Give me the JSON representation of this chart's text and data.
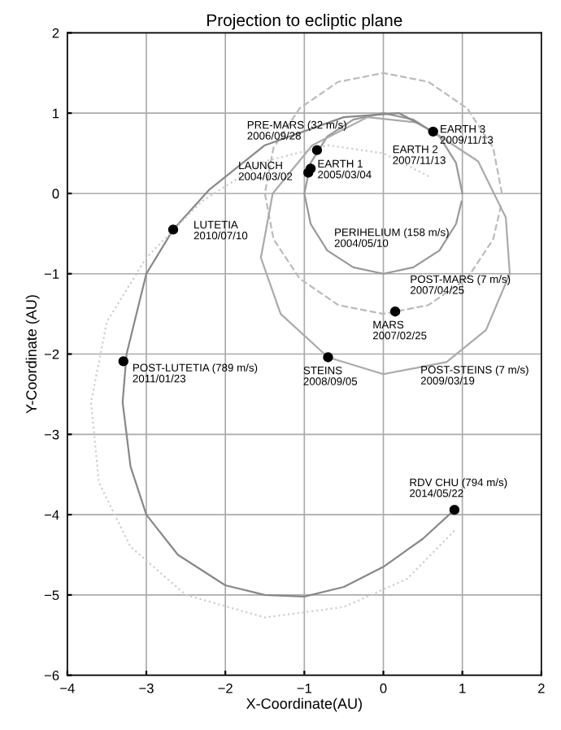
{
  "chart_data": {
    "type": "line",
    "title": "Projection to ecliptic plane",
    "xlabel": "X-Coordinate(AU)",
    "ylabel": "Y-Coordinate (AU)",
    "xlim": [
      -4,
      2
    ],
    "ylim": [
      -6,
      2
    ],
    "xticks": [
      -4,
      -3,
      -2,
      -1,
      0,
      1,
      2
    ],
    "yticks": [
      -6,
      -5,
      -4,
      -3,
      -2,
      -1,
      0,
      1,
      2
    ],
    "grid": true,
    "legend": false,
    "series": [
      {
        "type": "line",
        "line_style": "solid",
        "color": "#999999",
        "x": [
          1,
          0.92,
          0.71,
          0.38,
          0,
          -0.38,
          -0.71,
          -0.92,
          -1,
          -0.92,
          -0.71,
          -0.38,
          0,
          0.38,
          0.71,
          0.92,
          0.99
        ],
        "values": [
          0,
          0.38,
          0.71,
          0.92,
          1,
          0.92,
          0.71,
          0.38,
          0,
          -0.38,
          -0.71,
          -0.92,
          -1,
          -0.92,
          -0.71,
          -0.38,
          -0.1
        ]
      },
      {
        "type": "line",
        "line_style": "dashed",
        "color": "#bbbbbb",
        "x": [
          1.5,
          1.39,
          1.06,
          0.57,
          0,
          -0.57,
          -1.06,
          -1.39,
          -1.5,
          -1.39,
          -1.06,
          -0.57,
          0,
          0.57,
          1.06,
          1.39,
          1.49
        ],
        "values": [
          0,
          0.57,
          1.06,
          1.39,
          1.5,
          1.39,
          1.06,
          0.57,
          0,
          -0.57,
          -1.06,
          -1.39,
          -1.5,
          -1.39,
          -1.06,
          -0.57,
          -0.15
        ]
      },
      {
        "type": "line",
        "line_style": "solid",
        "color": "#aaaaaa",
        "x": [
          0.63,
          1.2,
          1.55,
          1.6,
          1.3,
          0.8,
          0,
          -0.7,
          -1.3,
          -1.55,
          -1.4,
          -0.9,
          -0.2,
          0.45
        ],
        "values": [
          0.77,
          0.4,
          -0.3,
          -1.0,
          -1.7,
          -2.1,
          -2.25,
          -2.04,
          -1.5,
          -0.8,
          0,
          0.6,
          0.95,
          0.88
        ]
      },
      {
        "type": "line",
        "line_style": "solid",
        "color": "#888888",
        "x": [
          0.63,
          0.2,
          -0.5,
          -1.5,
          -2.2,
          -2.66,
          -3.0,
          -3.25,
          -3.3,
          -3.2,
          -3.0,
          -2.6,
          -2.0,
          -1.5,
          -1.0,
          -0.5,
          0,
          0.5,
          0.9
        ],
        "values": [
          0.77,
          1.0,
          0.95,
          0.6,
          0.05,
          -0.45,
          -1.0,
          -2.0,
          -2.6,
          -3.4,
          -4.0,
          -4.5,
          -4.88,
          -5.0,
          -5.02,
          -4.9,
          -4.65,
          -4.3,
          -3.94
        ]
      },
      {
        "type": "line",
        "line_style": "dotted",
        "color": "#cccccc",
        "x": [
          0.9,
          0.3,
          -0.5,
          -1.5,
          -2.5,
          -3.2,
          -3.6,
          -3.7,
          -3.5,
          -3.0,
          -2.3,
          -1.5,
          -0.7,
          0,
          0.6
        ],
        "values": [
          -4.2,
          -4.8,
          -5.15,
          -5.28,
          -5.0,
          -4.4,
          -3.6,
          -2.6,
          -1.6,
          -0.8,
          -0.1,
          0.4,
          0.6,
          0.5,
          0.2
        ]
      },
      {
        "type": "scatter",
        "marker": "circle",
        "color": "#000000",
        "x": [
          -0.95,
          -0.92,
          -0.84,
          0.63,
          -2.66,
          0.15,
          -0.7,
          -3.29,
          0.9
        ],
        "values": [
          0.26,
          0.31,
          0.54,
          0.77,
          -0.45,
          -1.47,
          -2.04,
          -2.09,
          -3.94
        ]
      }
    ],
    "annotations": [
      {
        "text": "PRE-MARS (32 m/s)\n2006/09/28",
        "x": -0.84,
        "y": 0.54
      },
      {
        "text": "LAUNCH\n2004/03/02",
        "x": -0.95,
        "y": 0.26
      },
      {
        "text": "EARTH 1\n2005/03/04",
        "x": -0.92,
        "y": 0.31
      },
      {
        "text": "EARTH 3\n2009/11/13",
        "x": 0.63,
        "y": 0.77
      },
      {
        "text": "EARTH 2\n2007/11/13",
        "x": 0.63,
        "y": 0.77
      },
      {
        "text": "LUTETIA\n2010/07/10",
        "x": -2.66,
        "y": -0.45
      },
      "PERIHELIUM (158 m/s)\n2004/05/10",
      "POST-MARS (7 m/s)\n2007/04/25",
      {
        "text": "MARS\n2007/02/25",
        "x": 0.15,
        "y": -1.47
      },
      {
        "text": "STEINS\n2008/09/05",
        "x": -0.7,
        "y": -2.04
      },
      "POST-STEINS (7 m/s)\n2009/03/19",
      {
        "text": "POST-LUTETIA (789 m/s)\n2011/01/23",
        "x": -3.29,
        "y": -2.09
      },
      {
        "text": "RDV CHU (794 m/s)\n2014/05/22",
        "x": 0.9,
        "y": -3.94
      }
    ]
  }
}
